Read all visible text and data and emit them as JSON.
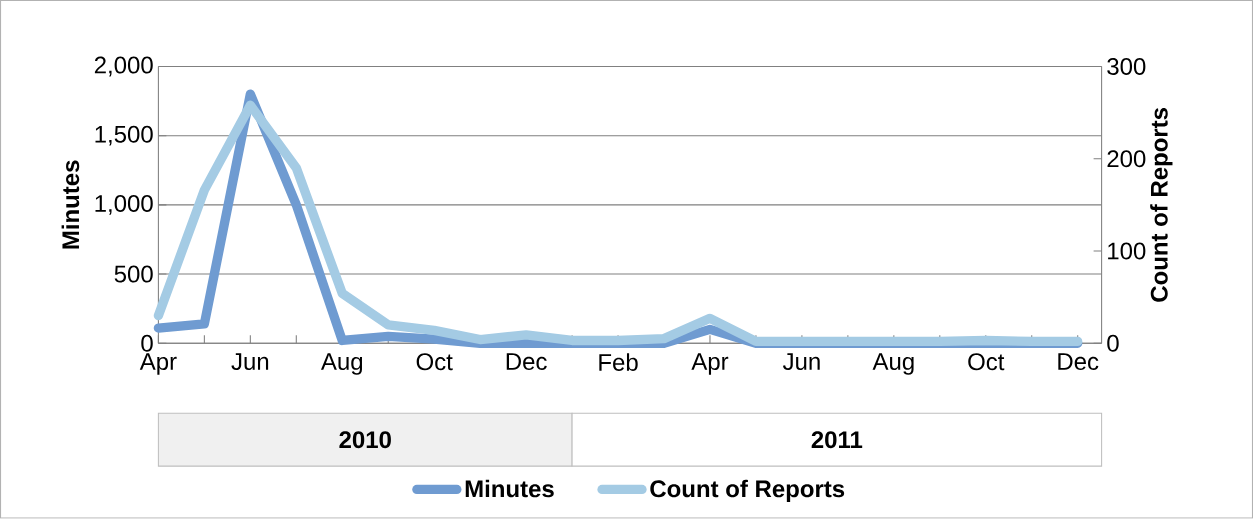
{
  "chart_data": {
    "type": "line",
    "ylabel": "Minutes",
    "y2label": "Count of Reports",
    "categories": [
      "Apr",
      null,
      "Jun",
      null,
      "Aug",
      null,
      "Oct",
      null,
      "Dec",
      null,
      "Feb",
      null,
      "Apr",
      null,
      "Jun",
      null,
      "Aug",
      null,
      "Oct",
      null,
      "Dec"
    ],
    "series": [
      {
        "name": "Minutes",
        "color": "#6f9bd1",
        "values": [
          110,
          140,
          1800,
          1000,
          20,
          50,
          30,
          0,
          0,
          0,
          0,
          0,
          100,
          0,
          0,
          0,
          0,
          0,
          0,
          0,
          0
        ]
      },
      {
        "name": "Count of Reports",
        "color": "#a4cbe4",
        "axis": "y2",
        "values": [
          30,
          166,
          258,
          190,
          54,
          20,
          14,
          4,
          9,
          3,
          3,
          5,
          27,
          2,
          2,
          2,
          2,
          2,
          3,
          2,
          2
        ]
      }
    ],
    "ylim": [
      0,
      2000
    ],
    "yticks": [
      0,
      500,
      {
        "value": 1000,
        "label": "1,000"
      },
      {
        "value": 1500,
        "label": "1,500"
      },
      {
        "value": 2000,
        "label": "2,000"
      }
    ],
    "y2lim": [
      0,
      300
    ],
    "y2ticks": [
      0,
      100,
      200,
      300
    ],
    "grid": "y",
    "legend": "bottom",
    "line_style": "solid",
    "marker": "none",
    "annotations": [
      "2010",
      "2011"
    ]
  }
}
